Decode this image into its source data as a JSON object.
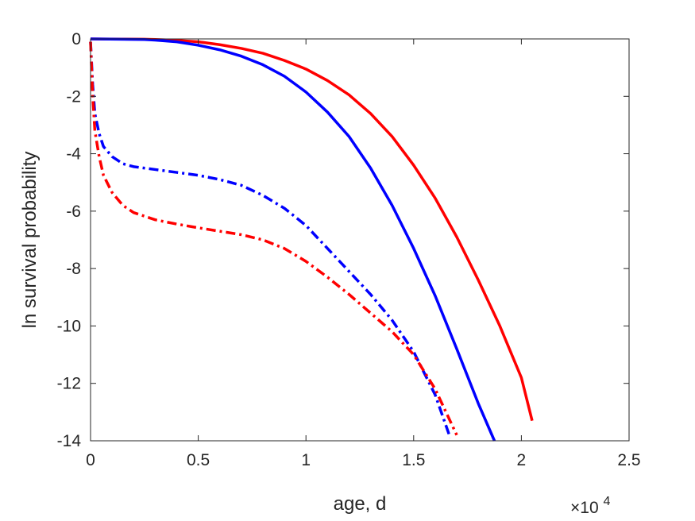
{
  "chart_data": {
    "type": "line",
    "title": "",
    "xlabel": "age, d",
    "ylabel": "ln survival probability",
    "x_multiplier_label": "×10",
    "x_multiplier_exponent": "4",
    "xlim": [
      0,
      2.5
    ],
    "ylim": [
      -14,
      0
    ],
    "xticks": [
      0,
      0.5,
      1,
      1.5,
      2,
      2.5
    ],
    "xtick_labels": [
      "0",
      "0.5",
      "1",
      "1.5",
      "2",
      "2.5"
    ],
    "yticks": [
      0,
      -2,
      -4,
      -6,
      -8,
      -10,
      -12,
      -14
    ],
    "ytick_labels": [
      "0",
      "-2",
      "-4",
      "-6",
      "-8",
      "-10",
      "-12",
      "-14"
    ],
    "grid": false,
    "legend": "none",
    "series": [
      {
        "color": "#ff0000",
        "style": "solid",
        "points": [
          [
            0,
            0
          ],
          [
            0.25,
            -0.01
          ],
          [
            0.3,
            -0.02
          ],
          [
            0.4,
            -0.05
          ],
          [
            0.5,
            -0.1
          ],
          [
            0.6,
            -0.2
          ],
          [
            0.7,
            -0.33
          ],
          [
            0.8,
            -0.5
          ],
          [
            0.9,
            -0.75
          ],
          [
            1.0,
            -1.05
          ],
          [
            1.1,
            -1.45
          ],
          [
            1.2,
            -1.95
          ],
          [
            1.3,
            -2.6
          ],
          [
            1.4,
            -3.4
          ],
          [
            1.5,
            -4.4
          ],
          [
            1.6,
            -5.55
          ],
          [
            1.7,
            -6.9
          ],
          [
            1.8,
            -8.4
          ],
          [
            1.9,
            -10.0
          ],
          [
            2.0,
            -11.8
          ],
          [
            2.05,
            -13.3
          ]
        ]
      },
      {
        "color": "#0000ff",
        "style": "solid",
        "points": [
          [
            0,
            0
          ],
          [
            0.25,
            -0.02
          ],
          [
            0.3,
            -0.04
          ],
          [
            0.4,
            -0.1
          ],
          [
            0.5,
            -0.22
          ],
          [
            0.6,
            -0.38
          ],
          [
            0.7,
            -0.6
          ],
          [
            0.8,
            -0.9
          ],
          [
            0.9,
            -1.3
          ],
          [
            1.0,
            -1.85
          ],
          [
            1.1,
            -2.55
          ],
          [
            1.2,
            -3.4
          ],
          [
            1.3,
            -4.5
          ],
          [
            1.4,
            -5.8
          ],
          [
            1.5,
            -7.3
          ],
          [
            1.6,
            -8.95
          ],
          [
            1.7,
            -10.8
          ],
          [
            1.8,
            -12.7
          ],
          [
            1.875,
            -14.0
          ]
        ]
      },
      {
        "color": "#0000ff",
        "style": "dashdot",
        "points": [
          [
            0,
            -0.1
          ],
          [
            0.01,
            -1.6
          ],
          [
            0.02,
            -2.6
          ],
          [
            0.04,
            -3.3
          ],
          [
            0.06,
            -3.75
          ],
          [
            0.1,
            -4.1
          ],
          [
            0.15,
            -4.35
          ],
          [
            0.2,
            -4.45
          ],
          [
            0.3,
            -4.55
          ],
          [
            0.4,
            -4.65
          ],
          [
            0.5,
            -4.75
          ],
          [
            0.6,
            -4.9
          ],
          [
            0.7,
            -5.1
          ],
          [
            0.8,
            -5.45
          ],
          [
            0.9,
            -5.9
          ],
          [
            1.0,
            -6.5
          ],
          [
            1.1,
            -7.3
          ],
          [
            1.2,
            -8.1
          ],
          [
            1.3,
            -8.9
          ],
          [
            1.4,
            -9.8
          ],
          [
            1.5,
            -10.9
          ],
          [
            1.6,
            -12.4
          ],
          [
            1.67,
            -13.9
          ]
        ]
      },
      {
        "color": "#ff0000",
        "style": "dashdot",
        "points": [
          [
            0,
            -0.1
          ],
          [
            0.01,
            -2.0
          ],
          [
            0.02,
            -3.2
          ],
          [
            0.04,
            -4.1
          ],
          [
            0.06,
            -4.75
          ],
          [
            0.1,
            -5.35
          ],
          [
            0.15,
            -5.8
          ],
          [
            0.2,
            -6.05
          ],
          [
            0.3,
            -6.3
          ],
          [
            0.4,
            -6.45
          ],
          [
            0.5,
            -6.58
          ],
          [
            0.6,
            -6.7
          ],
          [
            0.7,
            -6.82
          ],
          [
            0.8,
            -7.0
          ],
          [
            0.9,
            -7.3
          ],
          [
            1.0,
            -7.75
          ],
          [
            1.1,
            -8.3
          ],
          [
            1.2,
            -8.9
          ],
          [
            1.3,
            -9.55
          ],
          [
            1.4,
            -10.2
          ],
          [
            1.5,
            -11.0
          ],
          [
            1.6,
            -12.2
          ],
          [
            1.7,
            -13.8
          ]
        ]
      }
    ]
  }
}
